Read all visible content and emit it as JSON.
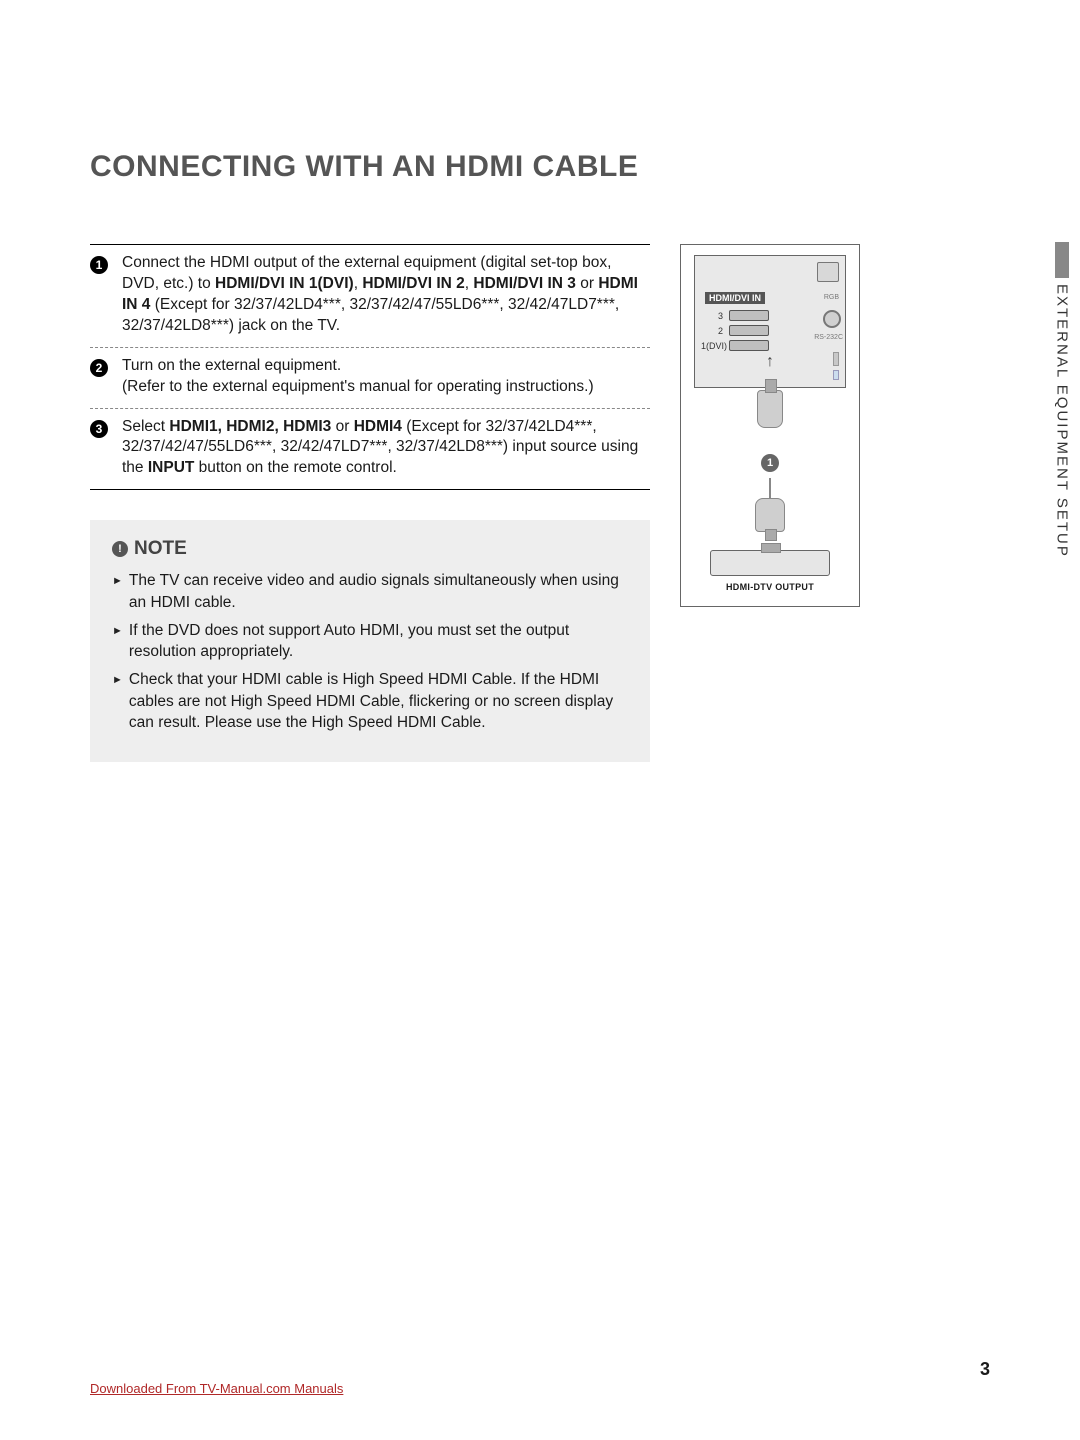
{
  "title": "CONNECTING WITH AN HDMI CABLE",
  "side_tab": "EXTERNAL EQUIPMENT SETUP",
  "steps": [
    {
      "num": "1",
      "parts": [
        {
          "t": "Connect the HDMI output of the external equipment (digital set-top box, DVD, etc.) to "
        },
        {
          "t": "HDMI/DVI IN 1(DVI)",
          "b": true
        },
        {
          "t": ", "
        },
        {
          "t": "HDMI/DVI IN 2",
          "b": true
        },
        {
          "t": ", "
        },
        {
          "t": "HDMI/DVI IN 3",
          "b": true
        },
        {
          "t": " or "
        },
        {
          "t": "HDMI IN 4",
          "b": true
        },
        {
          "t": " (Except for 32/37/42LD4***, 32/37/42/47/55LD6***, 32/42/47LD7***, 32/37/42LD8***) jack on the TV."
        }
      ]
    },
    {
      "num": "2",
      "parts": [
        {
          "t": "Turn on the external equipment."
        },
        {
          "br": true
        },
        {
          "t": "(Refer to the external equipment's manual for operating instructions.)"
        }
      ]
    },
    {
      "num": "3",
      "parts": [
        {
          "t": "Select "
        },
        {
          "t": "HDMI1, HDMI2, HDMI3",
          "b": true
        },
        {
          "t": " or "
        },
        {
          "t": "HDMI4",
          "b": true
        },
        {
          "t": " (Except for 32/37/42LD4***, 32/37/42/47/55LD6***, 32/42/47LD7***, 32/37/42LD8***) input source using the "
        },
        {
          "t": "INPUT",
          "b": true
        },
        {
          "t": " button on the remote control."
        }
      ]
    }
  ],
  "note_title": "NOTE",
  "notes": [
    "The TV can receive video and audio signals simultaneously when using an HDMI cable.",
    "If the DVD does not support Auto HDMI, you must set the output resolution appropriately.",
    "Check that your HDMI cable is High Speed HDMI Cable. If the HDMI cables are not High Speed HDMI Cable, flickering or no screen display can result. Please use the High Speed HDMI Cable."
  ],
  "diagram": {
    "panel_label": "HDMI/DVI IN",
    "ports": [
      "3",
      "2",
      "1(DVI)"
    ],
    "side_labels": {
      "rgb": "RGB",
      "rs": "RS-232C"
    },
    "callout": "1",
    "device_label": "HDMI-DTV OUTPUT"
  },
  "page_number": "3",
  "footer": "Downloaded From TV-Manual.com Manuals"
}
